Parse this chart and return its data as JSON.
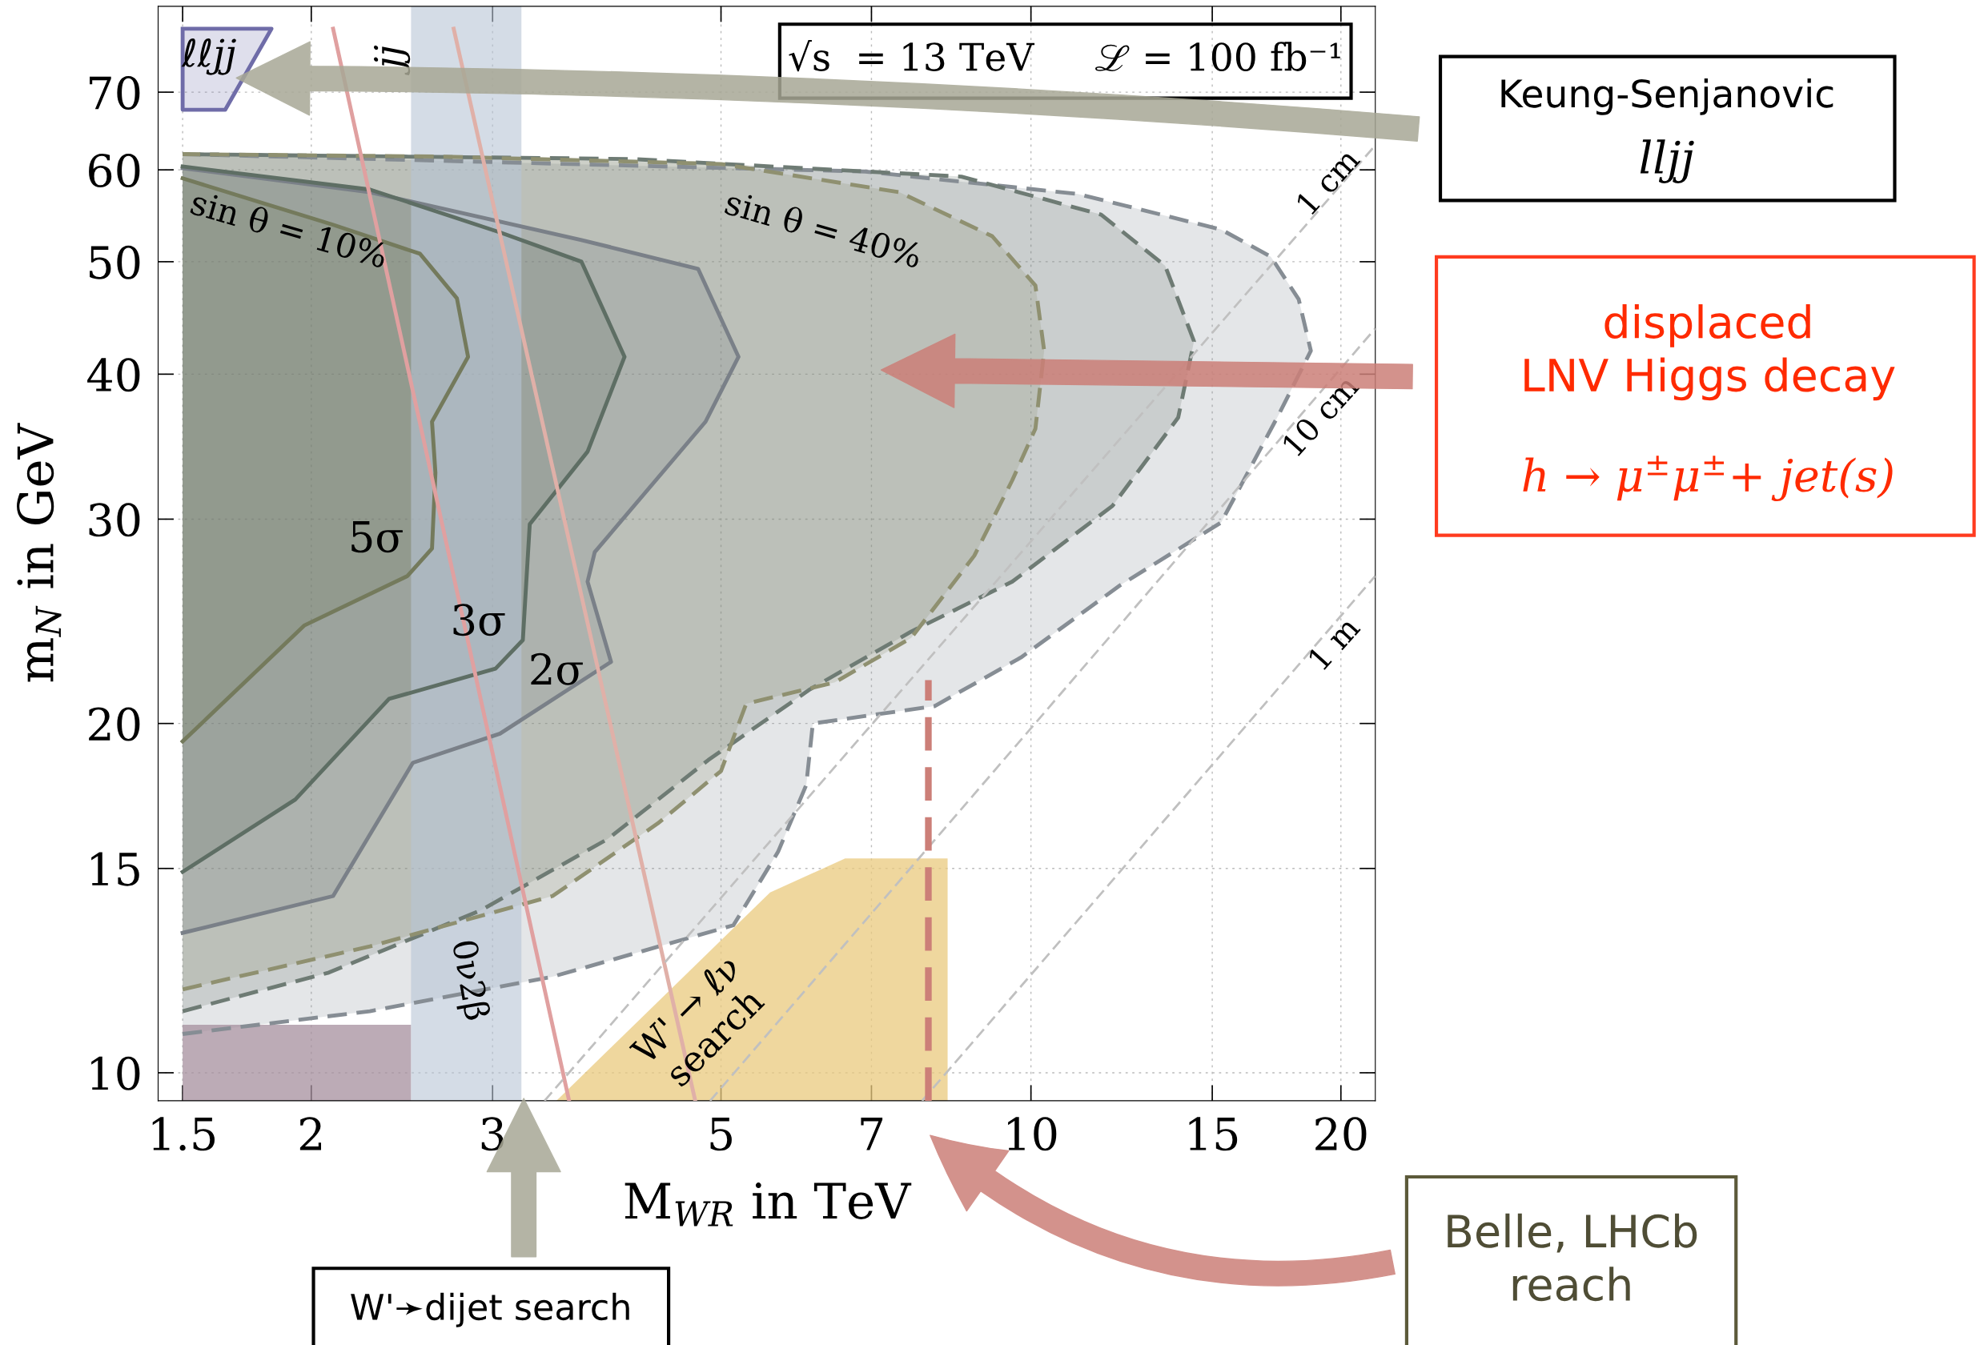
{
  "chart_data": {
    "type": "area",
    "xlabel": "M$_{WR}$ in TeV",
    "ylabel": "m$_{N}$ in GeV",
    "log": "xy",
    "xlim": [
      1.42,
      21.6
    ],
    "ylim": [
      9.46,
      83
    ],
    "xticks": [
      1.5,
      2,
      3,
      5,
      7,
      10,
      15,
      20
    ],
    "yticks": [
      10,
      15,
      20,
      30,
      40,
      50,
      60,
      70
    ],
    "grid": true,
    "series": [
      {
        "line_style": "dashed",
        "color": "#868d94",
        "x": [
          1.5,
          2.28,
          3.43,
          5.14,
          5.68,
          6.05,
          6.14,
          8.06,
          9.78,
          12.2,
          15.3,
          17.4,
          18.7,
          18.2,
          17.1,
          15.3,
          11.1,
          6.9,
          1.5
        ],
        "values": [
          10.8,
          11.3,
          12.1,
          13.4,
          15.5,
          17.7,
          20.0,
          20.7,
          22.8,
          26.3,
          29.8,
          36.9,
          41.9,
          46.4,
          50.5,
          53.3,
          57.2,
          59.8,
          61.9
        ]
      },
      {
        "line_style": "dashed",
        "color": "#6e7b74",
        "x": [
          1.5,
          2.08,
          2.92,
          3.88,
          4.86,
          6.1,
          7.65,
          9.59,
          12.0,
          13.9,
          14.4,
          13.5,
          11.7,
          8.56,
          4.1,
          1.5
        ],
        "values": [
          11.3,
          12.2,
          13.8,
          15.9,
          18.6,
          21.4,
          24.0,
          26.5,
          30.8,
          36.7,
          42.7,
          49.6,
          54.9,
          59.2,
          61.3,
          61.9
        ]
      },
      {
        "line_style": "dashed",
        "color": "#8f9070",
        "x": [
          1.5,
          2.28,
          3.43,
          4.34,
          5.0,
          5.29,
          6.45,
          7.65,
          8.81,
          9.59,
          10.1,
          10.3,
          10.1,
          9.17,
          7.45,
          5.0,
          2.68,
          1.5
        ],
        "values": [
          11.8,
          12.85,
          14.2,
          16.4,
          18.2,
          20.8,
          21.7,
          23.7,
          27.9,
          32.4,
          35.9,
          41.9,
          47.7,
          52.6,
          57.4,
          60.7,
          61.6,
          61.9
        ]
      },
      {
        "line_style": "solid",
        "color": "#7a8088",
        "x": [
          1.5,
          2.1,
          2.51,
          3.05,
          3.91,
          3.71,
          3.77,
          4.83,
          5.2,
          4.75,
          3.66,
          2.28,
          1.5
        ],
        "values": [
          13.2,
          14.2,
          18.5,
          19.6,
          22.6,
          26.5,
          28.1,
          36.4,
          41.4,
          49.3,
          52.2,
          57.4,
          60.2
        ]
      },
      {
        "line_style": "solid",
        "color": "#5e6e64",
        "x": [
          1.5,
          1.93,
          2.38,
          3.02,
          3.21,
          3.26,
          3.71,
          4.03,
          3.66,
          3.05,
          2.28,
          1.5
        ],
        "values": [
          14.9,
          17.2,
          21.0,
          22.3,
          23.6,
          29.7,
          34.3,
          41.4,
          50.0,
          53.0,
          57.7,
          60.4
        ]
      },
      {
        "line_style": "solid",
        "color": "#747a5c",
        "x": [
          1.5,
          1.97,
          2.48,
          2.62,
          2.64,
          2.62,
          2.84,
          2.77,
          2.55,
          2.1,
          1.5
        ],
        "values": [
          19.3,
          24.3,
          26.8,
          28.3,
          32.9,
          36.4,
          41.4,
          46.5,
          50.8,
          53.8,
          59.0
        ]
      },
      {
        "line_style": "solid",
        "color": "#6f6ca8",
        "x": [
          1.5,
          1.83,
          1.65,
          1.5,
          1.5
        ],
        "values": [
          79.4,
          79.4,
          67.6,
          67.6,
          79.4
        ]
      },
      {
        "color": "#a58f9e",
        "x": [
          1.5,
          2.5
        ],
        "values": [
          11.0,
          11.0
        ]
      },
      {
        "color": "#e9c97e",
        "x": [
          3.46,
          5.58,
          6.6,
          8.3
        ],
        "values": [
          9.46,
          14.3,
          15.3,
          15.3
        ]
      },
      {
        "type": "line",
        "line_style": "solid",
        "color": "#e0a0a0",
        "x": [
          2.1,
          3.56
        ],
        "values": [
          79.4,
          9.46
        ]
      },
      {
        "type": "line",
        "line_style": "solid",
        "color": "#e0b0a8",
        "x": [
          2.75,
          4.72
        ],
        "values": [
          79.4,
          9.46
        ]
      },
      {
        "type": "line",
        "line_style": "dashed",
        "color": "#c0c0c0",
        "x": [
          3.37,
          21.6
        ],
        "values": [
          9.46,
          63.0
        ]
      },
      {
        "type": "line",
        "line_style": "dashed",
        "color": "#c0c0c0",
        "x": [
          4.88,
          21.6
        ],
        "values": [
          9.46,
          43.8
        ]
      },
      {
        "type": "line",
        "line_style": "dashed",
        "color": "#c0c0c0",
        "x": [
          7.84,
          21.6
        ],
        "values": [
          9.46,
          26.8
        ]
      },
      {
        "type": "line",
        "line_style": "dashed",
        "color": "#cc7f78",
        "x": [
          7.95,
          7.95
        ],
        "values": [
          9.46,
          21.8
        ]
      }
    ],
    "bands": [
      {
        "axis": "x",
        "from": 2.5,
        "to": 3.2,
        "color": "#b8c4d6"
      }
    ],
    "annotations": [
      "sin θ = 10%",
      "sin θ = 40%",
      "5σ",
      "3σ",
      "2σ",
      "0ν2β",
      "W' → ℓν\nsearch",
      "ℓℓjj",
      "jj",
      "1 cm",
      "10 cm",
      "1 m",
      "√s  = 13 TeV     ℒ = 100 fb⁻¹",
      "Keung-Senjanovic",
      "lljj",
      "displaced\nLNV Higgs decay",
      "h → μ$^{±}$μ$^{±}$+ jet(s)",
      "Belle, LHCb\nreach",
      "W'➛dijet search"
    ]
  }
}
